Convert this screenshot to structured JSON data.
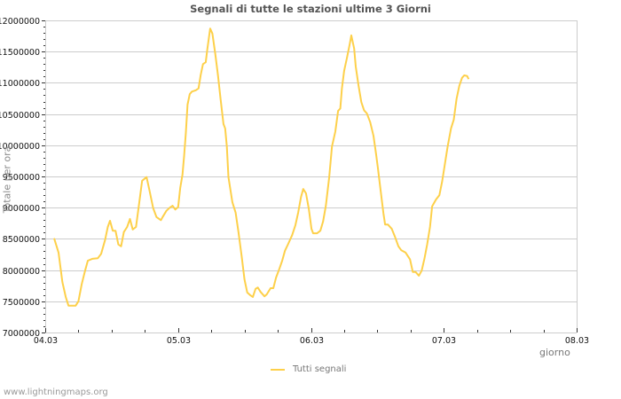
{
  "header": {
    "title": "Segnali di tutte le stazioni ultime 3 Giorni"
  },
  "footer": {
    "watermark": "www.lightningmaps.org"
  },
  "colors": {
    "series": "#fdd04a",
    "grid": "#cccccc",
    "axis_text": "#111111",
    "title": "#555555"
  },
  "chart_data": {
    "type": "line",
    "title": "Segnali di tutte le stazioni ultime 3 Giorni",
    "xlabel": "giorno",
    "ylabel": "Totale per ora",
    "x_unit": "hours since 04.03 00:00",
    "xlim": [
      0,
      96
    ],
    "ylim": [
      7000000,
      12000000
    ],
    "x_ticks": [
      {
        "pos": 0,
        "label": "04.03"
      },
      {
        "pos": 24,
        "label": "05.03"
      },
      {
        "pos": 48,
        "label": "06.03"
      },
      {
        "pos": 72,
        "label": "07.03"
      },
      {
        "pos": 96,
        "label": "08.03"
      }
    ],
    "x_minor_step": 6,
    "y_ticks": [
      7000000,
      7500000,
      8000000,
      8500000,
      9000000,
      9500000,
      10000000,
      10500000,
      11000000,
      11500000,
      12000000
    ],
    "y_minor_step": 100000,
    "grid": true,
    "legend_position": "bottom",
    "series": [
      {
        "name": "Tutti segnali",
        "color": "#fdd04a",
        "points": [
          [
            1.6,
            8510000
          ],
          [
            2.4,
            8280000
          ],
          [
            3.1,
            7810000
          ],
          [
            3.7,
            7570000
          ],
          [
            4.2,
            7430000
          ],
          [
            5.5,
            7430000
          ],
          [
            6.0,
            7500000
          ],
          [
            6.6,
            7780000
          ],
          [
            7.2,
            7990000
          ],
          [
            7.7,
            8150000
          ],
          [
            8.5,
            8180000
          ],
          [
            9.5,
            8190000
          ],
          [
            10.1,
            8260000
          ],
          [
            10.8,
            8480000
          ],
          [
            11.3,
            8690000
          ],
          [
            11.7,
            8790000
          ],
          [
            12.2,
            8630000
          ],
          [
            12.7,
            8630000
          ],
          [
            13.2,
            8410000
          ],
          [
            13.7,
            8380000
          ],
          [
            14.2,
            8610000
          ],
          [
            14.8,
            8690000
          ],
          [
            15.3,
            8820000
          ],
          [
            15.8,
            8650000
          ],
          [
            16.4,
            8690000
          ],
          [
            16.9,
            9020000
          ],
          [
            17.5,
            9430000
          ],
          [
            18.3,
            9490000
          ],
          [
            18.8,
            9290000
          ],
          [
            19.5,
            8990000
          ],
          [
            20.1,
            8850000
          ],
          [
            20.9,
            8800000
          ],
          [
            21.2,
            8850000
          ],
          [
            21.9,
            8950000
          ],
          [
            22.5,
            9000000
          ],
          [
            23.0,
            9030000
          ],
          [
            23.5,
            8970000
          ],
          [
            24.0,
            9010000
          ],
          [
            24.4,
            9320000
          ],
          [
            24.8,
            9530000
          ],
          [
            25.1,
            9840000
          ],
          [
            25.4,
            10200000
          ],
          [
            25.7,
            10650000
          ],
          [
            26.1,
            10820000
          ],
          [
            26.5,
            10860000
          ],
          [
            27.2,
            10880000
          ],
          [
            27.7,
            10910000
          ],
          [
            28.1,
            11130000
          ],
          [
            28.5,
            11300000
          ],
          [
            29.0,
            11330000
          ],
          [
            29.3,
            11550000
          ],
          [
            29.8,
            11870000
          ],
          [
            30.2,
            11790000
          ],
          [
            30.7,
            11470000
          ],
          [
            31.2,
            11120000
          ],
          [
            31.7,
            10720000
          ],
          [
            32.2,
            10340000
          ],
          [
            32.5,
            10270000
          ],
          [
            32.8,
            9980000
          ],
          [
            33.1,
            9490000
          ],
          [
            33.8,
            9090000
          ],
          [
            34.4,
            8920000
          ],
          [
            34.9,
            8610000
          ],
          [
            35.5,
            8210000
          ],
          [
            36.0,
            7850000
          ],
          [
            36.5,
            7640000
          ],
          [
            37.0,
            7600000
          ],
          [
            37.5,
            7570000
          ],
          [
            38.0,
            7700000
          ],
          [
            38.4,
            7720000
          ],
          [
            38.9,
            7650000
          ],
          [
            39.6,
            7580000
          ],
          [
            40.0,
            7610000
          ],
          [
            40.7,
            7710000
          ],
          [
            41.2,
            7710000
          ],
          [
            41.7,
            7880000
          ],
          [
            42.3,
            8020000
          ],
          [
            42.8,
            8150000
          ],
          [
            43.3,
            8310000
          ],
          [
            43.9,
            8420000
          ],
          [
            44.6,
            8560000
          ],
          [
            45.2,
            8720000
          ],
          [
            45.7,
            8920000
          ],
          [
            46.2,
            9170000
          ],
          [
            46.6,
            9300000
          ],
          [
            47.1,
            9230000
          ],
          [
            47.6,
            8990000
          ],
          [
            48.1,
            8660000
          ],
          [
            48.4,
            8590000
          ],
          [
            49.1,
            8590000
          ],
          [
            49.7,
            8630000
          ],
          [
            50.2,
            8780000
          ],
          [
            50.7,
            9030000
          ],
          [
            51.3,
            9490000
          ],
          [
            51.8,
            9980000
          ],
          [
            52.4,
            10220000
          ],
          [
            52.9,
            10550000
          ],
          [
            53.3,
            10590000
          ],
          [
            53.6,
            10910000
          ],
          [
            54.0,
            11190000
          ],
          [
            54.5,
            11400000
          ],
          [
            55.0,
            11620000
          ],
          [
            55.3,
            11760000
          ],
          [
            55.8,
            11550000
          ],
          [
            56.1,
            11260000
          ],
          [
            56.6,
            10950000
          ],
          [
            57.1,
            10690000
          ],
          [
            57.6,
            10560000
          ],
          [
            58.1,
            10510000
          ],
          [
            58.7,
            10370000
          ],
          [
            59.3,
            10150000
          ],
          [
            59.8,
            9840000
          ],
          [
            60.1,
            9630000
          ],
          [
            60.6,
            9270000
          ],
          [
            61.1,
            8910000
          ],
          [
            61.4,
            8730000
          ],
          [
            61.9,
            8730000
          ],
          [
            62.6,
            8660000
          ],
          [
            63.2,
            8530000
          ],
          [
            63.8,
            8380000
          ],
          [
            64.3,
            8320000
          ],
          [
            65.1,
            8280000
          ],
          [
            65.9,
            8170000
          ],
          [
            66.4,
            7970000
          ],
          [
            66.9,
            7970000
          ],
          [
            67.5,
            7910000
          ],
          [
            68.0,
            7990000
          ],
          [
            68.5,
            8180000
          ],
          [
            69.0,
            8410000
          ],
          [
            69.5,
            8690000
          ],
          [
            69.9,
            9020000
          ],
          [
            70.6,
            9130000
          ],
          [
            71.2,
            9200000
          ],
          [
            71.7,
            9420000
          ],
          [
            72.2,
            9700000
          ],
          [
            72.7,
            9980000
          ],
          [
            73.3,
            10270000
          ],
          [
            73.8,
            10410000
          ],
          [
            74.3,
            10740000
          ],
          [
            74.8,
            10950000
          ],
          [
            75.3,
            11080000
          ],
          [
            75.7,
            11120000
          ],
          [
            76.2,
            11110000
          ],
          [
            76.5,
            11060000
          ]
        ]
      }
    ]
  },
  "legend": {
    "items": [
      {
        "label": "Tutti segnali",
        "color": "#fdd04a"
      }
    ]
  }
}
